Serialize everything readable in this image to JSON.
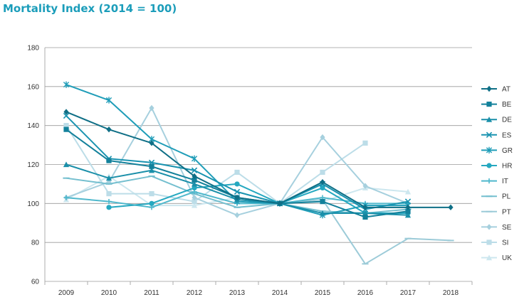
{
  "chart_data": {
    "type": "line",
    "title": "Mortality Index (2014 = 100)",
    "x": [
      2009,
      2010,
      2011,
      2012,
      2013,
      2014,
      2015,
      2016,
      2017,
      2018
    ],
    "ylim": [
      60,
      180
    ],
    "yticks": [
      60,
      80,
      100,
      120,
      140,
      160,
      180
    ],
    "grid": true,
    "legend_position": "right",
    "series": [
      {
        "name": "AT",
        "color": "#0f6f86",
        "marker": "diamond",
        "values": [
          147,
          138,
          131,
          114,
          103,
          100,
          111,
          98,
          98,
          98
        ]
      },
      {
        "name": "BE",
        "color": "#13819b",
        "marker": "square",
        "values": [
          138,
          122,
          119,
          112,
          103,
          100,
          101,
          93,
          96,
          null
        ]
      },
      {
        "name": "DE",
        "color": "#1a8fa9",
        "marker": "triangle",
        "values": [
          120,
          113,
          117,
          110,
          102,
          100,
          95,
          95,
          94,
          null
        ]
      },
      {
        "name": "ES",
        "color": "#1993b0",
        "marker": "x",
        "values": [
          145,
          123,
          121,
          117,
          106,
          100,
          110,
          97,
          101,
          null
        ]
      },
      {
        "name": "GR",
        "color": "#1f9db8",
        "marker": "star",
        "values": [
          161,
          153,
          133,
          123,
          101,
          100,
          94,
          99,
          99,
          null
        ]
      },
      {
        "name": "HR",
        "color": "#25a8c0",
        "marker": "circle",
        "values": [
          null,
          98,
          100,
          108,
          110,
          100,
          108,
          95,
          95,
          null
        ]
      },
      {
        "name": "IT",
        "color": "#4fb8cc",
        "marker": "plus",
        "values": [
          103,
          101,
          98,
          106,
          100,
          100,
          103,
          100,
          100,
          null
        ]
      },
      {
        "name": "PL",
        "color": "#74bfcf",
        "marker": "dash",
        "values": [
          113,
          110,
          114,
          105,
          98,
          100,
          96,
          95,
          97,
          null
        ]
      },
      {
        "name": "PT",
        "color": "#9ccbd8",
        "marker": "dash",
        "values": [
          null,
          null,
          null,
          null,
          null,
          100,
          102,
          69,
          82,
          81
        ]
      },
      {
        "name": "SE",
        "color": "#a6d0de",
        "marker": "diamond",
        "values": [
          103,
          111,
          149,
          103,
          94,
          100,
          134,
          109,
          100,
          null
        ]
      },
      {
        "name": "SI",
        "color": "#bcdde8",
        "marker": "square",
        "values": [
          140,
          105,
          105,
          101,
          116,
          100,
          116,
          131,
          null,
          null
        ]
      },
      {
        "name": "UK",
        "color": "#cde7ef",
        "marker": "triangle",
        "values": [
          102,
          114,
          99,
          99,
          103,
          100,
          101,
          108,
          106,
          null
        ]
      }
    ]
  }
}
